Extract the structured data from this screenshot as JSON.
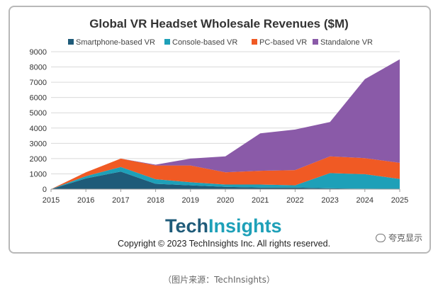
{
  "chart_data": {
    "type": "area",
    "stacked": true,
    "title": "Global VR Headset Wholesale Revenues ($M)",
    "x": [
      "2015",
      "2016",
      "2017",
      "2018",
      "2019",
      "2020",
      "2021",
      "2022",
      "2023",
      "2024",
      "2025"
    ],
    "ylim": [
      0,
      9000
    ],
    "yticks": [
      0,
      1000,
      2000,
      3000,
      4000,
      5000,
      6000,
      7000,
      8000,
      9000
    ],
    "grid": true,
    "legend_position": "top",
    "series": [
      {
        "name": "Smartphone-based VR",
        "color": "#1f5b79",
        "values": [
          0,
          700,
          1150,
          350,
          250,
          150,
          100,
          100,
          50,
          30,
          20
        ]
      },
      {
        "name": "Console-based VR",
        "color": "#1ea0b8",
        "values": [
          0,
          150,
          300,
          300,
          200,
          150,
          200,
          150,
          1000,
          950,
          650
        ]
      },
      {
        "name": "PC-based VR",
        "color": "#f05a24",
        "values": [
          0,
          250,
          550,
          900,
          1100,
          800,
          900,
          1000,
          1100,
          1050,
          1050
        ]
      },
      {
        "name": "Standalone VR",
        "color": "#8a5aa8",
        "values": [
          0,
          0,
          0,
          50,
          450,
          1050,
          2450,
          2650,
          2250,
          5170,
          6780
        ]
      }
    ]
  },
  "logo_text_1": "Tech",
  "logo_text_2": "Insights",
  "copyright": "Copyright © 2023 TechInsights Inc.  All rights reserved.",
  "watermark": "夸克显示",
  "caption": "（图片来源：TechInsights）"
}
